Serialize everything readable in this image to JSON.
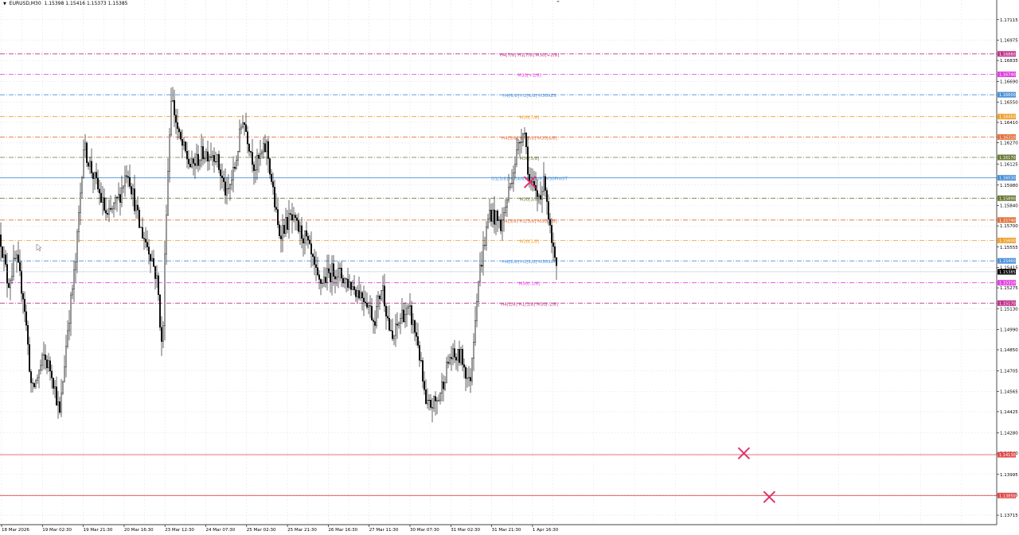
{
  "symbol": {
    "name": "EURUSD,M30",
    "ohlc": "1.15398 1.15416 1.15373 1.15385"
  },
  "colors": {
    "background": "#ffffff",
    "grid": "#e6e6ee",
    "candle": "#000000",
    "close_marker": "#e0336a",
    "axis_text": "#000000"
  },
  "price_axis": {
    "min": 1.1365,
    "max": 1.1725,
    "tick_labels": [
      "1.17115",
      "1.16975",
      "1.16835",
      "1.16690",
      "1.16550",
      "1.16410",
      "1.16270",
      "1.16125",
      "1.15980",
      "1.15840",
      "1.15700",
      "1.15555",
      "1.15415",
      "1.15275",
      "1.15130",
      "1.14990",
      "1.14850",
      "1.14705",
      "1.14565",
      "1.14425",
      "1.14280",
      "1.14140",
      "1.13995",
      "1.13855",
      "1.13715"
    ],
    "current_price": "1.15385"
  },
  "time_axis": {
    "labels": [
      "18 Mar 2026",
      "19 Mar 02:30",
      "19 Mar 21:30",
      "20 Mar 16:30",
      "23 Mar 12:30",
      "24 Mar 07:30",
      "25 Mar 02:30",
      "25 Mar 21:30",
      "26 Mar 16:30",
      "27 Mar 11:30",
      "30 Mar 07:30",
      "31 Mar 02:30",
      "31 Mar 21:30",
      "1 Apr 16:30"
    ]
  },
  "levels": [
    {
      "price": 1.1688,
      "label": "H4[7/8] H1[7/8] M30[+2/8]",
      "tag": "1.16880",
      "color": "#c0328a",
      "style": "dashdot"
    },
    {
      "price": 1.1674,
      "label": "M30[+1/8]",
      "tag": "1.16740",
      "color": "#e040e0",
      "style": "dashdot"
    },
    {
      "price": 1.166,
      "label": "H4[6/8] H1[6/8] M30RES",
      "tag": "1.16600",
      "color": "#4a90d9",
      "style": "dashdot"
    },
    {
      "price": 1.1645,
      "label": "M30[7/8]",
      "tag": "1.16450",
      "color": "#f0a030",
      "style": "dashdot"
    },
    {
      "price": 1.1631,
      "label": "H4[5/8] H1[5/8] M30[6/8]",
      "tag": "1.16310",
      "color": "#e0703a",
      "style": "dashdot"
    },
    {
      "price": 1.1617,
      "label": "M30[5/8]",
      "tag": "1.16170",
      "color": "#6b7a3a",
      "style": "dashdot"
    },
    {
      "price": 1.1603,
      "label": "D1[3/8] H4[4/8] H1[4/8] M30PIVOT",
      "tag": "1.16030",
      "color": "#4a90d9",
      "style": "solid"
    },
    {
      "price": 1.1589,
      "label": "M30[3/8]",
      "tag": "1.15890",
      "color": "#6b7a3a",
      "style": "dashdot"
    },
    {
      "price": 1.1574,
      "label": "H4[3/8] H1[3/8] M30[2/8]",
      "tag": "1.15740",
      "color": "#e0703a",
      "style": "dashdot"
    },
    {
      "price": 1.156,
      "label": "M30[1/8]",
      "tag": "1.15600",
      "color": "#f0a030",
      "style": "dashdot"
    },
    {
      "price": 1.1546,
      "label": "H4[2/8] H1[2/8] M30SUP",
      "tag": "1.15460",
      "color": "#4a90d9",
      "style": "dashdot"
    },
    {
      "price": 1.1531,
      "label": "M30[-1/8]",
      "tag": "1.15310",
      "color": "#e040e0",
      "style": "dashdot"
    },
    {
      "price": 1.1517,
      "label": "H4[1/8] H1[1/8] M30[-2/8]",
      "tag": "1.15170",
      "color": "#c0328a",
      "style": "dashdot"
    },
    {
      "price": 1.1413,
      "label": "",
      "tag": "1.14130",
      "color": "#e04a4a",
      "style": "solid"
    },
    {
      "price": 1.1385,
      "label": "",
      "tag": "1.13850",
      "color": "#e04a4a",
      "style": "solid"
    }
  ],
  "chart_data": {
    "type": "candlestick",
    "title": "EURUSD,M30",
    "ylim": [
      1.1365,
      1.1725
    ],
    "price_path": [
      [
        0,
        1.1564
      ],
      [
        10,
        1.153
      ],
      [
        20,
        1.1548
      ],
      [
        30,
        1.152
      ],
      [
        40,
        1.1455
      ],
      [
        55,
        1.148
      ],
      [
        65,
        1.147
      ],
      [
        75,
        1.144
      ],
      [
        85,
        1.15
      ],
      [
        95,
        1.1545
      ],
      [
        105,
        1.1625
      ],
      [
        120,
        1.16
      ],
      [
        135,
        1.1575
      ],
      [
        150,
        1.159
      ],
      [
        160,
        1.161
      ],
      [
        175,
        1.157
      ],
      [
        190,
        1.155
      ],
      [
        198,
        1.153
      ],
      [
        204,
        1.148
      ],
      [
        208,
        1.157
      ],
      [
        215,
        1.166
      ],
      [
        225,
        1.163
      ],
      [
        240,
        1.161
      ],
      [
        255,
        1.162
      ],
      [
        270,
        1.162
      ],
      [
        285,
        1.159
      ],
      [
        295,
        1.161
      ],
      [
        305,
        1.1645
      ],
      [
        320,
        1.161
      ],
      [
        335,
        1.1625
      ],
      [
        350,
        1.1565
      ],
      [
        365,
        1.1575
      ],
      [
        385,
        1.156
      ],
      [
        400,
        1.153
      ],
      [
        420,
        1.154
      ],
      [
        440,
        1.153
      ],
      [
        460,
        1.152
      ],
      [
        470,
        1.1505
      ],
      [
        480,
        1.153
      ],
      [
        492,
        1.149
      ],
      [
        505,
        1.151
      ],
      [
        515,
        1.151
      ],
      [
        525,
        1.149
      ],
      [
        535,
        1.1445
      ],
      [
        550,
        1.145
      ],
      [
        565,
        1.148
      ],
      [
        580,
        1.148
      ],
      [
        590,
        1.146
      ],
      [
        600,
        1.153
      ],
      [
        615,
        1.158
      ],
      [
        630,
        1.157
      ],
      [
        645,
        1.161
      ],
      [
        658,
        1.164
      ],
      [
        665,
        1.16
      ],
      [
        675,
        1.159
      ],
      [
        685,
        1.16
      ],
      [
        692,
        1.156
      ],
      [
        699,
        1.1538
      ]
    ]
  },
  "markers": [
    {
      "type": "close-x",
      "x_frac": 0.52,
      "price": 1.16
    },
    {
      "type": "close-x",
      "x_frac": 0.73,
      "price": 1.1414
    },
    {
      "type": "close-x",
      "x_frac": 0.755,
      "price": 1.1384
    }
  ]
}
